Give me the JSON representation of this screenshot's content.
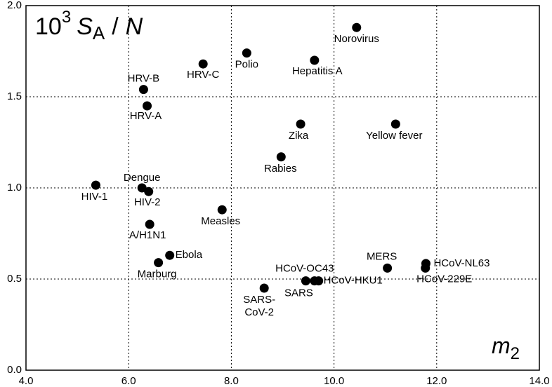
{
  "chart_data": {
    "type": "scatter",
    "ylabel": {
      "base": "10",
      "power": "3",
      "symbol": "S",
      "subscript": "A",
      "divider": "/",
      "denominator": "N"
    },
    "xlabel": {
      "symbol": "m",
      "subscript": "2"
    },
    "labels": [
      "Norovirus",
      "Polio",
      "Hepatitis A",
      "HRV-C",
      "HRV-B",
      "HRV-A",
      "Zika",
      "Yellow fever",
      "Rabies",
      "HIV-1",
      "Dengue",
      "HIV-2",
      "Measles",
      "A/H1N1",
      "Ebola",
      "Marburg",
      "MERS",
      "HCoV-NL63",
      "HCoV-229E",
      "HCoV-OC43",
      "SARS",
      "HCoV-HKU1",
      [
        "SARS-",
        "CoV-2"
      ]
    ],
    "x": [
      10.44,
      8.3,
      9.62,
      7.45,
      6.29,
      6.36,
      9.35,
      11.2,
      8.97,
      5.36,
      6.26,
      6.39,
      7.82,
      6.41,
      6.8,
      6.58,
      11.04,
      11.79,
      11.78,
      9.62,
      9.45,
      9.7,
      8.64
    ],
    "values": [
      1.88,
      1.74,
      1.7,
      1.68,
      1.54,
      1.45,
      1.35,
      1.35,
      1.17,
      1.015,
      1.0,
      0.98,
      0.88,
      0.8,
      0.63,
      0.59,
      0.56,
      0.585,
      0.56,
      0.49,
      0.49,
      0.49,
      0.45
    ],
    "color": "#000000",
    "xlim": [
      4,
      14
    ],
    "ylim": [
      0,
      2
    ],
    "xticks": [
      {
        "value": 4,
        "label": "4.0"
      },
      {
        "value": 6,
        "label": "6.0"
      },
      {
        "value": 8,
        "label": "8.0"
      },
      {
        "value": 10,
        "label": "10.0"
      },
      {
        "value": 12,
        "label": "12.0"
      },
      {
        "value": 14,
        "label": "14.0"
      }
    ],
    "yticks": [
      {
        "value": 0,
        "label": "0.0"
      },
      0.5,
      {
        "value": 1,
        "label": "1.0"
      },
      1.5,
      {
        "value": 2,
        "label": "2.0"
      }
    ],
    "grid": true
  }
}
